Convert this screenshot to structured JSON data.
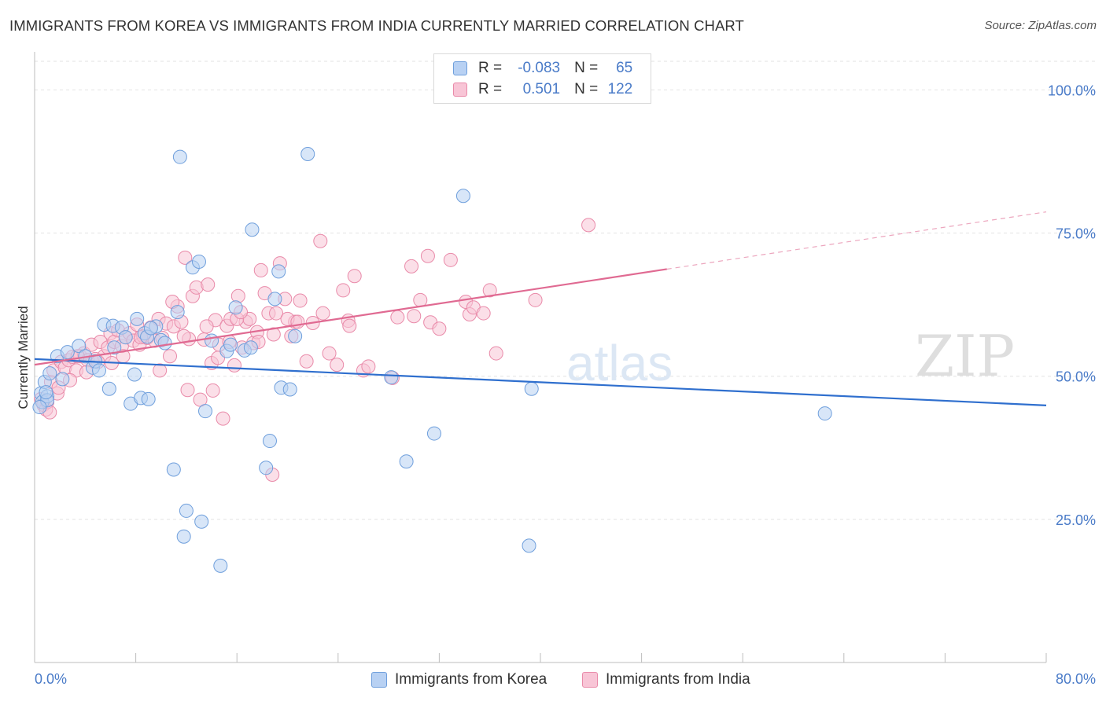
{
  "title": "IMMIGRANTS FROM KOREA VS IMMIGRANTS FROM INDIA CURRENTLY MARRIED CORRELATION CHART",
  "source": "Source: ZipAtlas.com",
  "watermark": {
    "zip": "ZIP",
    "atlas": "atlas"
  },
  "legend": {
    "korea": {
      "r_label": "R =",
      "r_value": "-0.083",
      "n_label": "N =",
      "n_value": "65"
    },
    "india": {
      "r_label": "R =",
      "r_value": "0.501",
      "n_label": "N =",
      "n_value": "122"
    }
  },
  "colors": {
    "korea_fill": "#b8d1f3",
    "korea_stroke": "#6f9fdc",
    "korea_line": "#2f6fce",
    "india_fill": "#f8c5d6",
    "india_stroke": "#e98aa9",
    "india_line": "#e06a92",
    "tick_text": "#4a7bc8",
    "grid": "#e2e2e2"
  },
  "chart_data": {
    "type": "scatter",
    "title": "IMMIGRANTS FROM KOREA VS IMMIGRANTS FROM INDIA CURRENTLY MARRIED CORRELATION CHART",
    "xlabel": "",
    "ylabel": "Currently Married",
    "xlim": [
      0,
      80
    ],
    "ylim": [
      0,
      105
    ],
    "x_tick_labels": [
      "0.0%",
      "80.0%"
    ],
    "y_tick_labels": [
      "25.0%",
      "50.0%",
      "75.0%",
      "100.0%"
    ],
    "y_ticks": [
      25,
      50,
      75,
      100
    ],
    "grid": true,
    "series": [
      {
        "name": "Immigrants from Korea",
        "r": -0.083,
        "n": 65,
        "trend": {
          "x": [
            0,
            80
          ],
          "y": [
            53.0,
            44.9
          ]
        },
        "points": [
          [
            0.5,
            47.0
          ],
          [
            0.6,
            45.5
          ],
          [
            0.8,
            49.0
          ],
          [
            1.0,
            46.5
          ],
          [
            1.2,
            50.5
          ],
          [
            1.0,
            45.8
          ],
          [
            1.8,
            53.5
          ],
          [
            2.2,
            49.5
          ],
          [
            2.6,
            54.2
          ],
          [
            3.5,
            55.3
          ],
          [
            4.0,
            53.5
          ],
          [
            4.6,
            51.5
          ],
          [
            4.8,
            52.6
          ],
          [
            5.5,
            59.0
          ],
          [
            5.9,
            47.8
          ],
          [
            6.2,
            58.8
          ],
          [
            6.3,
            55.0
          ],
          [
            6.9,
            58.5
          ],
          [
            7.2,
            56.8
          ],
          [
            7.6,
            45.2
          ],
          [
            7.9,
            50.3
          ],
          [
            8.1,
            60.0
          ],
          [
            8.4,
            46.2
          ],
          [
            8.7,
            57.5
          ],
          [
            8.9,
            56.9
          ],
          [
            9.0,
            46.0
          ],
          [
            9.6,
            58.7
          ],
          [
            10.0,
            56.3
          ],
          [
            10.3,
            55.8
          ],
          [
            11.0,
            33.7
          ],
          [
            11.3,
            61.2
          ],
          [
            11.5,
            88.3
          ],
          [
            11.8,
            22.0
          ],
          [
            12.0,
            26.5
          ],
          [
            12.5,
            69.0
          ],
          [
            13.0,
            70.0
          ],
          [
            13.2,
            24.6
          ],
          [
            13.5,
            43.9
          ],
          [
            14.0,
            56.2
          ],
          [
            14.7,
            16.9
          ],
          [
            15.2,
            54.4
          ],
          [
            15.5,
            55.5
          ],
          [
            15.9,
            62.0
          ],
          [
            16.6,
            54.5
          ],
          [
            17.1,
            55.0
          ],
          [
            17.2,
            75.6
          ],
          [
            18.3,
            34.0
          ],
          [
            18.6,
            38.7
          ],
          [
            19.0,
            63.5
          ],
          [
            19.3,
            68.3
          ],
          [
            19.5,
            48.0
          ],
          [
            20.2,
            47.7
          ],
          [
            20.6,
            57.0
          ],
          [
            21.6,
            88.8
          ],
          [
            28.2,
            49.8
          ],
          [
            29.4,
            35.1
          ],
          [
            31.6,
            40.0
          ],
          [
            33.9,
            81.5
          ],
          [
            39.1,
            20.4
          ],
          [
            39.3,
            47.8
          ],
          [
            62.5,
            43.5
          ],
          [
            0.4,
            44.6
          ],
          [
            0.9,
            47.2
          ],
          [
            5.1,
            51.0
          ],
          [
            9.2,
            58.4
          ]
        ]
      },
      {
        "name": "Immigrants from India",
        "r": 0.501,
        "n": 122,
        "trend": {
          "x": [
            0,
            50
          ],
          "y": [
            52.0,
            68.7
          ]
        },
        "trend_extension": {
          "x": [
            50,
            80
          ],
          "y": [
            68.7,
            78.7
          ]
        },
        "points": [
          [
            0.5,
            46.0
          ],
          [
            0.7,
            45.0
          ],
          [
            0.9,
            44.2
          ],
          [
            1.0,
            45.5
          ],
          [
            1.3,
            49.0
          ],
          [
            1.5,
            51.0
          ],
          [
            1.8,
            47.0
          ],
          [
            2.1,
            52.5
          ],
          [
            2.4,
            51.5
          ],
          [
            2.7,
            52.8
          ],
          [
            3.0,
            53.4
          ],
          [
            3.3,
            51.0
          ],
          [
            3.6,
            53.5
          ],
          [
            3.9,
            54.0
          ],
          [
            4.2,
            52.8
          ],
          [
            4.5,
            55.5
          ],
          [
            4.8,
            53.0
          ],
          [
            5.2,
            56.0
          ],
          [
            5.5,
            53.5
          ],
          [
            5.8,
            55.0
          ],
          [
            6.0,
            57.5
          ],
          [
            6.3,
            56.0
          ],
          [
            6.6,
            58.0
          ],
          [
            6.9,
            55.3
          ],
          [
            7.2,
            56.8
          ],
          [
            7.5,
            57.5
          ],
          [
            7.8,
            56.2
          ],
          [
            8.1,
            59.0
          ],
          [
            8.3,
            55.5
          ],
          [
            8.6,
            57.0
          ],
          [
            8.9,
            56.7
          ],
          [
            9.2,
            58.5
          ],
          [
            9.5,
            56.2
          ],
          [
            9.8,
            60.0
          ],
          [
            10.1,
            56.7
          ],
          [
            10.4,
            59.2
          ],
          [
            10.7,
            53.5
          ],
          [
            11.0,
            58.7
          ],
          [
            11.3,
            62.2
          ],
          [
            11.6,
            59.5
          ],
          [
            11.9,
            70.7
          ],
          [
            12.2,
            56.5
          ],
          [
            12.5,
            64.0
          ],
          [
            12.8,
            65.5
          ],
          [
            13.1,
            45.9
          ],
          [
            13.4,
            56.4
          ],
          [
            13.7,
            66.0
          ],
          [
            14.0,
            52.3
          ],
          [
            14.3,
            59.8
          ],
          [
            14.6,
            55.5
          ],
          [
            14.9,
            42.6
          ],
          [
            15.2,
            58.8
          ],
          [
            15.5,
            60.0
          ],
          [
            15.8,
            51.9
          ],
          [
            16.1,
            64.0
          ],
          [
            16.4,
            55.0
          ],
          [
            16.7,
            59.5
          ],
          [
            17.0,
            60.0
          ],
          [
            17.3,
            55.8
          ],
          [
            17.6,
            57.7
          ],
          [
            17.9,
            68.5
          ],
          [
            18.2,
            64.5
          ],
          [
            18.5,
            61.0
          ],
          [
            18.8,
            32.8
          ],
          [
            19.1,
            61.0
          ],
          [
            19.4,
            69.7
          ],
          [
            19.8,
            63.5
          ],
          [
            20.3,
            57.0
          ],
          [
            20.6,
            59.5
          ],
          [
            21.0,
            63.2
          ],
          [
            21.5,
            52.6
          ],
          [
            22.0,
            59.3
          ],
          [
            22.6,
            73.6
          ],
          [
            22.8,
            61.0
          ],
          [
            23.3,
            54.0
          ],
          [
            23.9,
            52.0
          ],
          [
            24.4,
            65.0
          ],
          [
            24.8,
            59.7
          ],
          [
            25.3,
            67.5
          ],
          [
            26.0,
            51.0
          ],
          [
            26.4,
            51.7
          ],
          [
            28.3,
            49.7
          ],
          [
            28.7,
            60.3
          ],
          [
            29.8,
            69.2
          ],
          [
            30.0,
            60.5
          ],
          [
            30.5,
            63.3
          ],
          [
            31.1,
            71.0
          ],
          [
            31.3,
            59.4
          ],
          [
            32.0,
            58.3
          ],
          [
            32.9,
            70.3
          ],
          [
            34.1,
            63.0
          ],
          [
            34.4,
            60.8
          ],
          [
            34.7,
            62.0
          ],
          [
            35.5,
            61.0
          ],
          [
            36.0,
            65.0
          ],
          [
            36.5,
            54.0
          ],
          [
            39.6,
            63.3
          ],
          [
            43.8,
            76.4
          ],
          [
            24.9,
            58.8
          ],
          [
            11.8,
            57.0
          ],
          [
            12.1,
            47.6
          ],
          [
            14.1,
            47.5
          ],
          [
            20.0,
            60.0
          ],
          [
            20.8,
            59.5
          ],
          [
            16.0,
            60.0
          ],
          [
            16.3,
            61.2
          ],
          [
            17.7,
            56.0
          ],
          [
            18.9,
            57.3
          ],
          [
            10.9,
            63.0
          ],
          [
            8.4,
            56.8
          ],
          [
            7.0,
            53.5
          ],
          [
            6.1,
            52.3
          ],
          [
            5.0,
            52.5
          ],
          [
            4.1,
            50.7
          ],
          [
            3.4,
            53.5
          ],
          [
            2.8,
            49.3
          ],
          [
            1.9,
            48.0
          ],
          [
            1.2,
            43.7
          ],
          [
            9.9,
            51.0
          ],
          [
            13.6,
            58.7
          ],
          [
            14.5,
            53.2
          ],
          [
            15.4,
            56.0
          ]
        ]
      }
    ]
  }
}
